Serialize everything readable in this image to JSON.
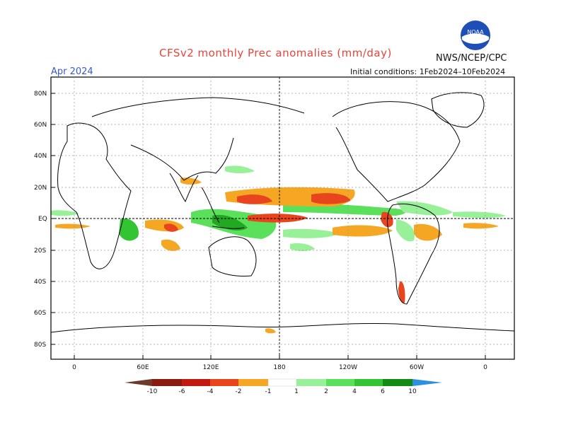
{
  "header": {
    "title": "CFSv2 monthly Prec anomalies (mm/day)",
    "valid_month": "Apr 2024",
    "initial_conditions": "Initial conditions: 1Feb2024–10Feb2024",
    "agency": "NWS/NCEP/CPC",
    "logo_text": "NOAA"
  },
  "axes": {
    "lat_labels": [
      "80N",
      "60N",
      "40N",
      "20N",
      "EQ",
      "20S",
      "40S",
      "60S",
      "80S"
    ],
    "lon_labels": [
      "0",
      "60E",
      "120E",
      "180",
      "120W",
      "60W",
      "0"
    ]
  },
  "colorbar": {
    "labels": [
      "-10",
      "-6",
      "-4",
      "-2",
      "-1",
      "1",
      "2",
      "4",
      "6",
      "10"
    ],
    "colors": {
      "neg": [
        "#6b3a2a",
        "#8b1a10",
        "#c21a10",
        "#e8441e",
        "#f07820",
        "#f5a623"
      ],
      "pos": [
        "#98f098",
        "#5ae05a",
        "#33c433",
        "#22a822",
        "#138a13",
        "#2c8fe0"
      ]
    }
  },
  "map_data": {
    "type": "global precipitation anomaly map",
    "units": "mm/day",
    "features": [
      "coastlines",
      "dashed lat/lon grid",
      "zero meridian/dateline reference"
    ]
  }
}
